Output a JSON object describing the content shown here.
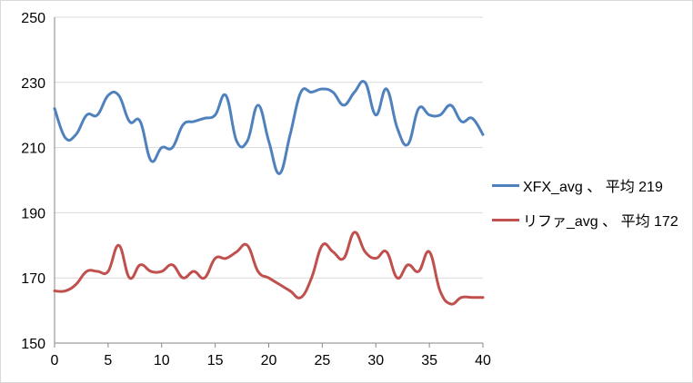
{
  "chart_data": {
    "type": "line",
    "title": "",
    "xlabel": "",
    "ylabel": "",
    "xlim": [
      0,
      40
    ],
    "ylim": [
      150,
      250
    ],
    "xticks": [
      0,
      5,
      10,
      15,
      20,
      25,
      30,
      35,
      40
    ],
    "yticks": [
      150,
      170,
      190,
      210,
      230,
      250
    ],
    "grid": "horizontal",
    "smooth": true,
    "legend_position": "right",
    "x": [
      0,
      1,
      2,
      3,
      4,
      5,
      6,
      7,
      8,
      9,
      10,
      11,
      12,
      13,
      14,
      15,
      16,
      17,
      18,
      19,
      20,
      21,
      22,
      23,
      24,
      25,
      26,
      27,
      28,
      29,
      30,
      31,
      32,
      33,
      34,
      35,
      36,
      37,
      38,
      39,
      40
    ],
    "series": [
      {
        "name": "XFX_avg 、 平均 219",
        "color": "#4f81bd",
        "values": [
          222,
          213,
          214,
          220,
          220,
          226,
          226,
          218,
          218,
          206,
          210,
          210,
          217,
          218,
          219,
          220,
          226,
          212,
          212,
          223,
          212,
          202,
          214,
          227,
          227,
          228,
          227,
          223,
          227,
          230,
          220,
          228,
          216,
          211,
          222,
          220,
          220,
          223,
          218,
          219,
          214
        ]
      },
      {
        "name": "リファ_avg 、 平均 172",
        "color": "#c0504d",
        "values": [
          166,
          166,
          168,
          172,
          172,
          172,
          180,
          170,
          174,
          172,
          172,
          174,
          170,
          172,
          170,
          176,
          176,
          178,
          180,
          172,
          170,
          168,
          166,
          164,
          170,
          180,
          178,
          176,
          184,
          178,
          176,
          178,
          170,
          174,
          172,
          178,
          166,
          162,
          164,
          164,
          164
        ]
      }
    ]
  }
}
